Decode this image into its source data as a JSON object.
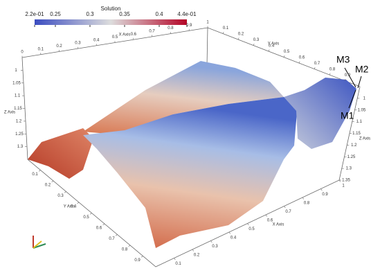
{
  "colorbar": {
    "title": "Solution",
    "range": [
      0.22,
      0.44
    ],
    "ticks": [
      {
        "value": 0.22,
        "label": "2.2e-01"
      },
      0.25,
      0.3,
      0.35,
      0.4,
      {
        "value": 0.44,
        "label": "4.4e-01"
      }
    ]
  },
  "axes": [
    {
      "label": "X Axis",
      "range": [
        0,
        1
      ],
      "ticks": [
        0,
        0.1,
        0.2,
        0.3,
        0.4,
        0.5,
        0.6,
        0.7,
        0.8,
        0.9,
        1
      ]
    },
    {
      "label": "Y Axis",
      "range": [
        0,
        1
      ],
      "ticks": [
        0.1,
        0.2,
        0.3,
        0.4,
        0.5,
        0.6,
        0.7,
        0.8,
        0.9
      ]
    },
    {
      "label": "Z Axis",
      "range": [
        0.95,
        1.35
      ],
      "ticks": [
        1,
        1.05,
        1.1,
        1.15,
        1.2,
        1.25,
        1.3
      ]
    },
    {
      "label": "Y Axis",
      "range": [
        0,
        1
      ],
      "ticks": [
        0.1,
        0.2,
        0.3,
        0.4,
        0.5,
        0.6,
        0.7,
        0.8,
        0.9
      ]
    },
    {
      "label": "X Axis",
      "range": [
        0,
        1
      ],
      "ticks": [
        0.1,
        0.2,
        0.3,
        0.4,
        0.5,
        0.6,
        0.7,
        0.8,
        0.9,
        1
      ]
    },
    {
      "label": "Z Axis",
      "range": [
        0.95,
        1.35
      ],
      "ticks": [
        1,
        1.05,
        1.1,
        1.15,
        1.2,
        1.25,
        1.3,
        1.35
      ]
    }
  ],
  "annotations": [
    "M1",
    "M2",
    "M3"
  ]
}
